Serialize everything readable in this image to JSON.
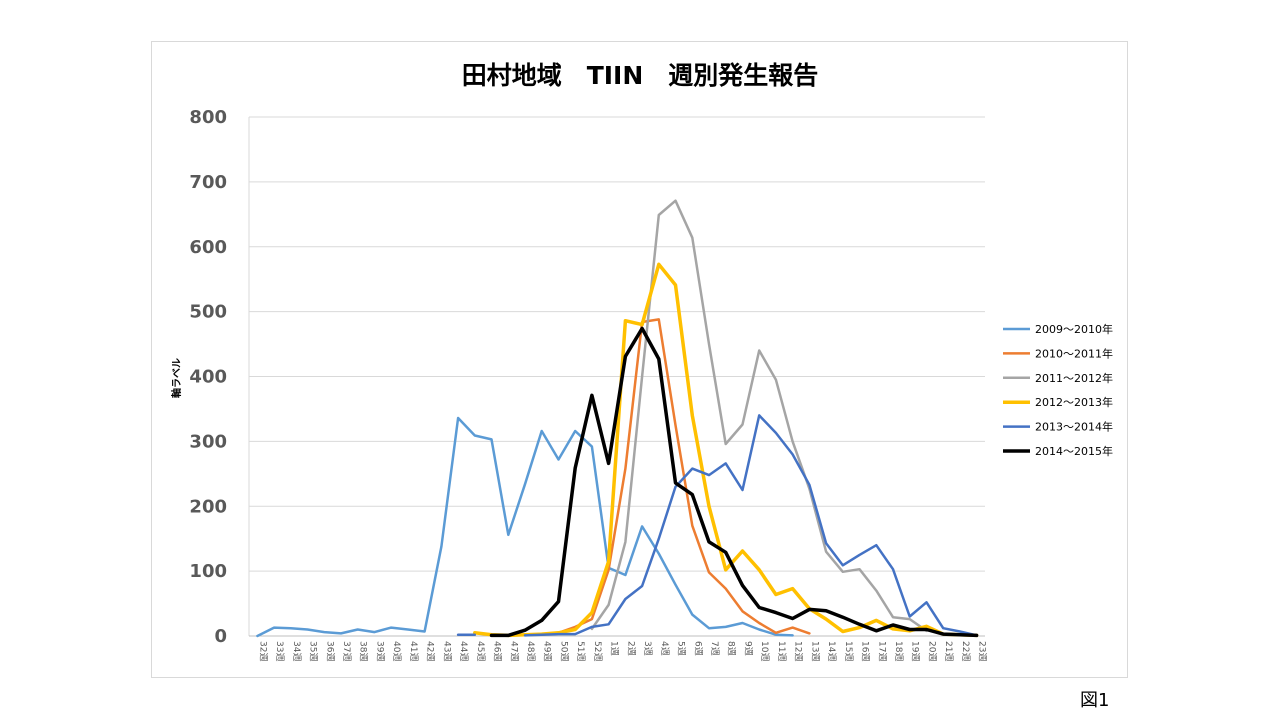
{
  "figure_label": "図1",
  "chart_data": {
    "type": "line",
    "title": "田村地域　TIIN　週別発生報告",
    "ylabel": "軸ラベル",
    "xlabel": "",
    "ylim": [
      0,
      800
    ],
    "yticks": [
      0,
      100,
      200,
      300,
      400,
      500,
      600,
      700,
      800
    ],
    "grid": true,
    "legend_position": "right",
    "categories": [
      "32週",
      "33週",
      "34週",
      "35週",
      "36週",
      "37週",
      "38週",
      "39週",
      "40週",
      "41週",
      "42週",
      "43週",
      "44週",
      "45週",
      "46週",
      "47週",
      "48週",
      "49週",
      "50週",
      "51週",
      "52週",
      "1週",
      "2週",
      "3週",
      "4週",
      "5週",
      "6週",
      "7週",
      "8週",
      "9週",
      "10週",
      "11週",
      "12週",
      "13週",
      "14週",
      "15週",
      "16週",
      "17週",
      "18週",
      "19週",
      "20週",
      "21週",
      "22週",
      "23週"
    ],
    "series": [
      {
        "name": "2009～2010年",
        "color": "#5b9bd5",
        "width": 2.5,
        "values": [
          0,
          13,
          12,
          10,
          6,
          4,
          10,
          6,
          13,
          10,
          7,
          138,
          336,
          309,
          303,
          156,
          234,
          316,
          272,
          316,
          292,
          105,
          94,
          169,
          127,
          79,
          33,
          12,
          14,
          20,
          10,
          2,
          1,
          null,
          null,
          null,
          null,
          null,
          null,
          null,
          null,
          null,
          null,
          null
        ]
      },
      {
        "name": "2010～2011年",
        "color": "#ed7d31",
        "width": 2.5,
        "values": [
          null,
          null,
          null,
          null,
          null,
          null,
          null,
          null,
          null,
          null,
          null,
          null,
          null,
          null,
          null,
          null,
          null,
          2,
          5,
          14,
          26,
          102,
          258,
          484,
          488,
          325,
          170,
          98,
          73,
          38,
          20,
          5,
          13,
          4,
          null,
          null,
          null,
          null,
          null,
          null,
          null,
          null,
          null,
          null
        ]
      },
      {
        "name": "2011～2012年",
        "color": "#a5a5a5",
        "width": 2.5,
        "values": [
          null,
          null,
          null,
          null,
          null,
          null,
          null,
          null,
          null,
          null,
          null,
          null,
          null,
          null,
          null,
          null,
          null,
          null,
          null,
          null,
          11,
          48,
          145,
          400,
          649,
          671,
          614,
          450,
          296,
          326,
          440,
          395,
          300,
          227,
          130,
          99,
          103,
          70,
          29,
          26,
          8,
          null,
          null,
          null
        ]
      },
      {
        "name": "2012～2013年",
        "color": "#ffc000",
        "width": 3.5,
        "values": [
          null,
          null,
          null,
          null,
          null,
          null,
          null,
          null,
          null,
          null,
          null,
          null,
          null,
          5,
          2,
          1,
          2,
          3,
          5,
          10,
          36,
          115,
          486,
          480,
          573,
          541,
          340,
          200,
          102,
          131,
          102,
          64,
          73,
          42,
          26,
          7,
          13,
          24,
          11,
          8,
          15,
          3,
          2,
          1
        ]
      },
      {
        "name": "2013～2014年",
        "color": "#4472c4",
        "width": 2.5,
        "values": [
          null,
          null,
          null,
          null,
          null,
          null,
          null,
          null,
          null,
          null,
          null,
          null,
          2,
          2,
          null,
          null,
          1,
          2,
          3,
          3,
          14,
          18,
          57,
          77,
          150,
          230,
          258,
          248,
          266,
          225,
          340,
          313,
          280,
          233,
          143,
          109,
          125,
          140,
          103,
          30,
          52,
          12,
          7,
          1
        ]
      },
      {
        "name": "2014～2015年",
        "color": "#000000",
        "width": 3.5,
        "values": [
          null,
          null,
          null,
          null,
          null,
          null,
          null,
          null,
          null,
          null,
          null,
          null,
          null,
          null,
          1,
          1,
          9,
          24,
          53,
          259,
          371,
          266,
          431,
          474,
          427,
          236,
          218,
          145,
          129,
          78,
          44,
          36,
          27,
          41,
          39,
          29,
          18,
          8,
          17,
          10,
          10,
          3,
          2,
          1
        ]
      }
    ]
  }
}
